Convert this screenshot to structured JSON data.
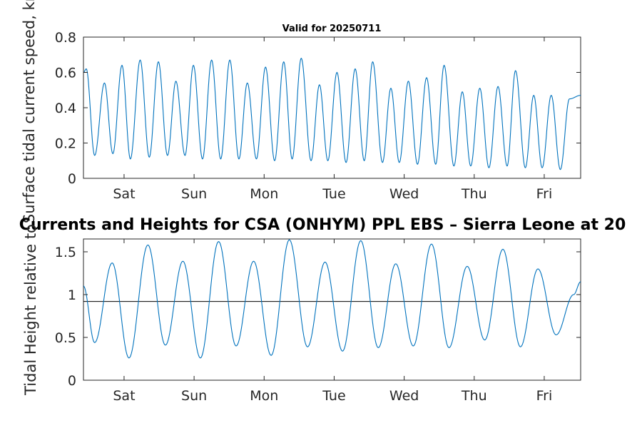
{
  "chart_data": [
    {
      "type": "line",
      "title": "Valid for 20250711",
      "ylabel": "Surface tidal current speed, kn",
      "xlabel": "",
      "ylim": [
        0,
        0.8
      ],
      "yticks": [
        0,
        0.2,
        0.4,
        0.6,
        0.8
      ],
      "ytick_labels": [
        "0",
        "0.2",
        "0.4",
        "0.6",
        "0.8"
      ],
      "xlim_days": [
        0,
        7.1
      ],
      "xtick_labels": [
        "Sat",
        "Sun",
        "Mon",
        "Tue",
        "Wed",
        "Thu",
        "Fri"
      ],
      "xtick_days": [
        0.58,
        1.58,
        2.58,
        3.58,
        4.58,
        5.58,
        6.58
      ],
      "grid": false,
      "series": [
        {
          "color": "#0072bd",
          "extrema": [
            [
              0,
              0.6
            ],
            [
              0.04,
              0.62
            ],
            [
              0.16,
              0.13
            ],
            [
              0.3,
              0.54
            ],
            [
              0.42,
              0.14
            ],
            [
              0.55,
              0.64
            ],
            [
              0.67,
              0.11
            ],
            [
              0.81,
              0.67
            ],
            [
              0.94,
              0.12
            ],
            [
              1.07,
              0.66
            ],
            [
              1.2,
              0.13
            ],
            [
              1.32,
              0.55
            ],
            [
              1.45,
              0.13
            ],
            [
              1.57,
              0.64
            ],
            [
              1.7,
              0.11
            ],
            [
              1.83,
              0.67
            ],
            [
              1.96,
              0.11
            ],
            [
              2.09,
              0.67
            ],
            [
              2.22,
              0.11
            ],
            [
              2.34,
              0.54
            ],
            [
              2.47,
              0.11
            ],
            [
              2.6,
              0.63
            ],
            [
              2.73,
              0.1
            ],
            [
              2.86,
              0.66
            ],
            [
              2.98,
              0.11
            ],
            [
              3.11,
              0.68
            ],
            [
              3.25,
              0.1
            ],
            [
              3.37,
              0.53
            ],
            [
              3.49,
              0.1
            ],
            [
              3.62,
              0.6
            ],
            [
              3.75,
              0.09
            ],
            [
              3.88,
              0.62
            ],
            [
              4.01,
              0.1
            ],
            [
              4.13,
              0.66
            ],
            [
              4.27,
              0.09
            ],
            [
              4.39,
              0.51
            ],
            [
              4.51,
              0.09
            ],
            [
              4.64,
              0.55
            ],
            [
              4.77,
              0.08
            ],
            [
              4.9,
              0.57
            ],
            [
              5.03,
              0.08
            ],
            [
              5.15,
              0.64
            ],
            [
              5.29,
              0.07
            ],
            [
              5.41,
              0.49
            ],
            [
              5.53,
              0.07
            ],
            [
              5.66,
              0.51
            ],
            [
              5.79,
              0.06
            ],
            [
              5.92,
              0.52
            ],
            [
              6.05,
              0.07
            ],
            [
              6.17,
              0.61
            ],
            [
              6.31,
              0.06
            ],
            [
              6.43,
              0.47
            ],
            [
              6.55,
              0.06
            ],
            [
              6.68,
              0.47
            ],
            [
              6.81,
              0.05
            ],
            [
              6.94,
              0.45
            ],
            [
              7.1,
              0.47
            ]
          ]
        }
      ]
    },
    {
      "type": "line",
      "title": "Currents and Heights for CSA (ONHYM) PPL EBS  – Sierra Leone at 20",
      "ylabel": "Tidal Height relative to",
      "xlabel": "",
      "ylim": [
        0,
        1.65
      ],
      "yticks": [
        0,
        0.5,
        1,
        1.5
      ],
      "ytick_labels": [
        "0",
        "0.5",
        "1",
        "1.5"
      ],
      "xlim_days": [
        0,
        7.1
      ],
      "xtick_labels": [
        "Sat",
        "Sun",
        "Mon",
        "Tue",
        "Wed",
        "Thu",
        "Fri"
      ],
      "xtick_days": [
        0.58,
        1.58,
        2.58,
        3.58,
        4.58,
        5.58,
        6.58
      ],
      "grid": false,
      "reference_line": 0.92,
      "series": [
        {
          "color": "#0072bd",
          "extrema": [
            [
              0,
              1.1
            ],
            [
              0.16,
              0.44
            ],
            [
              0.41,
              1.37
            ],
            [
              0.65,
              0.26
            ],
            [
              0.92,
              1.58
            ],
            [
              1.17,
              0.41
            ],
            [
              1.42,
              1.39
            ],
            [
              1.67,
              0.26
            ],
            [
              1.93,
              1.62
            ],
            [
              2.18,
              0.4
            ],
            [
              2.43,
              1.39
            ],
            [
              2.68,
              0.29
            ],
            [
              2.94,
              1.64
            ],
            [
              3.2,
              0.39
            ],
            [
              3.45,
              1.38
            ],
            [
              3.7,
              0.34
            ],
            [
              3.96,
              1.63
            ],
            [
              4.21,
              0.38
            ],
            [
              4.46,
              1.36
            ],
            [
              4.71,
              0.4
            ],
            [
              4.97,
              1.59
            ],
            [
              5.22,
              0.38
            ],
            [
              5.48,
              1.33
            ],
            [
              5.73,
              0.47
            ],
            [
              5.99,
              1.53
            ],
            [
              6.24,
              0.39
            ],
            [
              6.49,
              1.3
            ],
            [
              6.75,
              0.53
            ],
            [
              7.0,
              1.0
            ],
            [
              7.1,
              1.15
            ]
          ]
        }
      ]
    }
  ]
}
